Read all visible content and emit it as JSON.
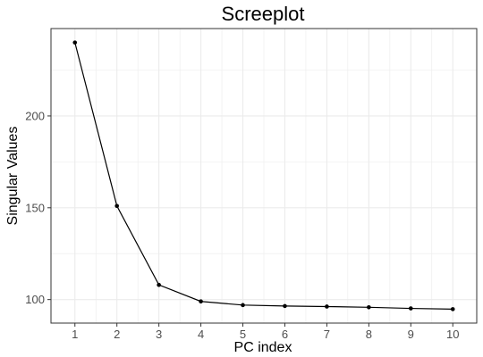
{
  "chart_data": {
    "type": "line",
    "title": "Screeplot",
    "xlabel": "PC index",
    "ylabel": "Singular Values",
    "x": [
      1,
      2,
      3,
      4,
      5,
      6,
      7,
      8,
      9,
      10
    ],
    "values": [
      240,
      151,
      108,
      99,
      97,
      96.5,
      96.2,
      95.8,
      95.2,
      94.8
    ],
    "x_ticks": [
      "1",
      "2",
      "3",
      "4",
      "5",
      "6",
      "7",
      "8",
      "9",
      "10"
    ],
    "y_ticks": [
      100,
      150,
      200
    ],
    "xlim": [
      0.43,
      10.57
    ],
    "ylim": [
      87.2,
      247.6
    ],
    "grid": true,
    "line_color": "#000000",
    "grid_color": "#ebebeb",
    "panel_border_color": "#333333"
  }
}
